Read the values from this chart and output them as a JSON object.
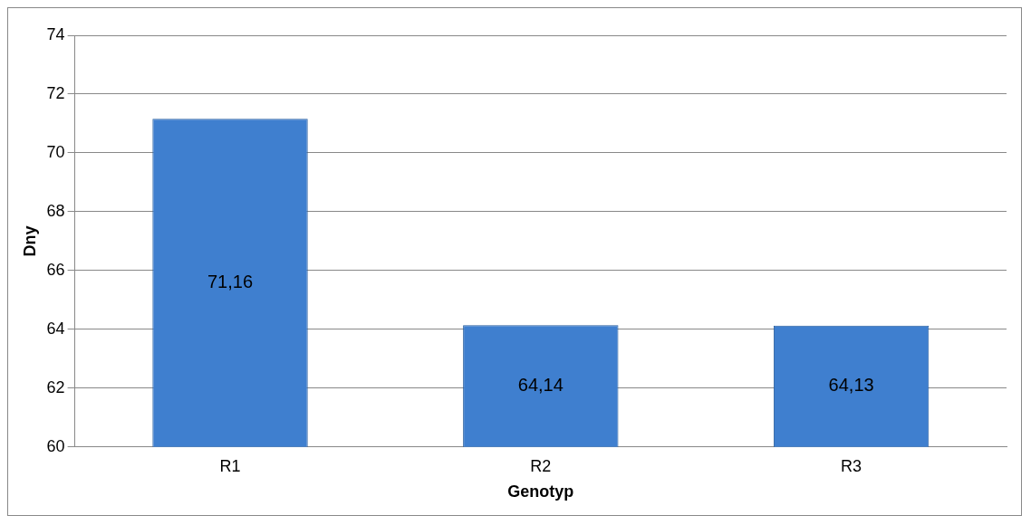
{
  "chart_data": {
    "type": "bar",
    "xlabel": "Genotyp",
    "ylabel": "Dny",
    "categories": [
      "R1",
      "R2",
      "R3"
    ],
    "values": [
      71.16,
      64.14,
      64.13
    ],
    "value_labels": [
      "71,16",
      "64,14",
      "64,13"
    ],
    "color": "#3f7fcf",
    "ylim": [
      60,
      74
    ],
    "yticks": [
      60,
      62,
      64,
      66,
      68,
      70,
      72,
      74
    ],
    "grid": "y"
  }
}
